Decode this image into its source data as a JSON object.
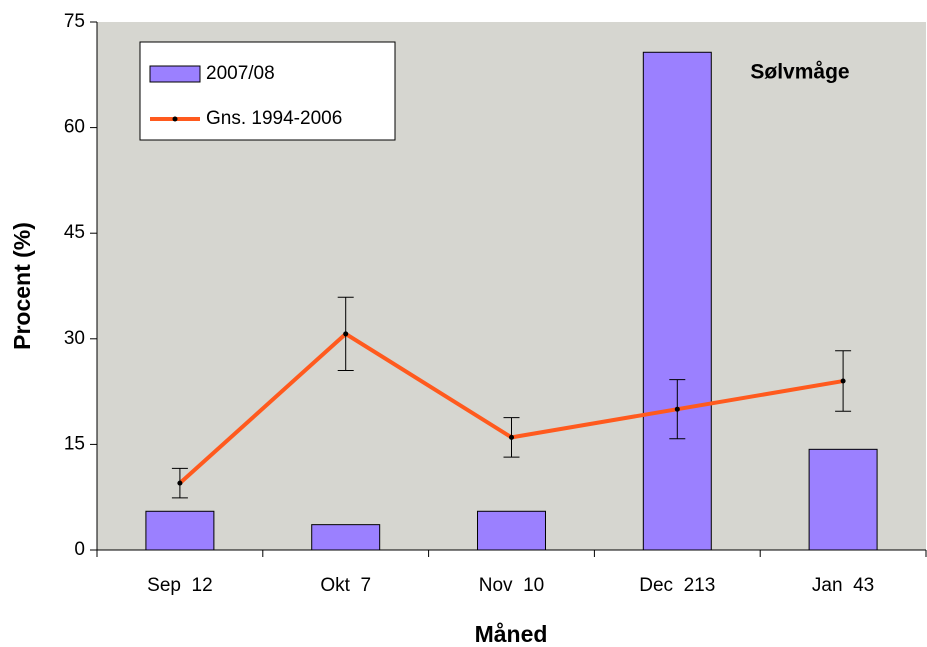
{
  "chart_data": {
    "type": "bar-line",
    "title": "Sølvmåge",
    "x_label": "Måned",
    "y_label": "Procent (%)",
    "categories": [
      "Sep  12",
      "Okt  7",
      "Nov  10",
      "Dec  213",
      "Jan  43"
    ],
    "series": [
      {
        "name": "2007/08",
        "type": "bar",
        "color": "#9b80ff",
        "values": [
          5.5,
          3.6,
          5.5,
          70.7,
          14.3
        ]
      },
      {
        "name": "Gns. 1994-2006",
        "type": "line",
        "color": "#ff5a1e",
        "values": [
          9.5,
          30.7,
          16,
          20,
          24
        ],
        "errors": [
          2.1,
          5.2,
          2.8,
          4.2,
          4.3
        ]
      }
    ],
    "ylim": [
      0,
      75
    ],
    "yticks": [
      0,
      15,
      30,
      45,
      60,
      75
    ],
    "grid": false,
    "legend": "upper left"
  }
}
